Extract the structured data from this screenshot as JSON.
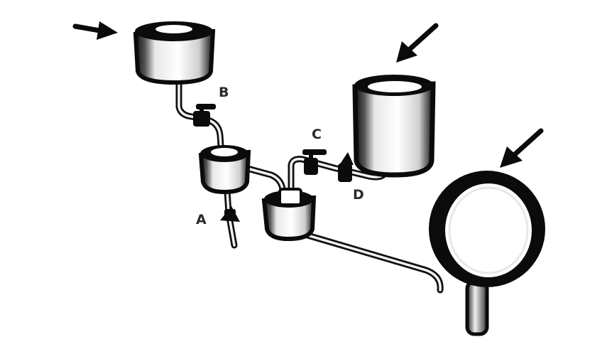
{
  "colors": {
    "ink": "#0b0b0b",
    "white": "#ffffff",
    "highlight": "#f4f4f4"
  },
  "labels": {
    "a": "A",
    "b": "B",
    "c": "C",
    "d": "D"
  },
  "icons": [
    "arrow-icon",
    "arrow-icon",
    "arrow-icon"
  ]
}
